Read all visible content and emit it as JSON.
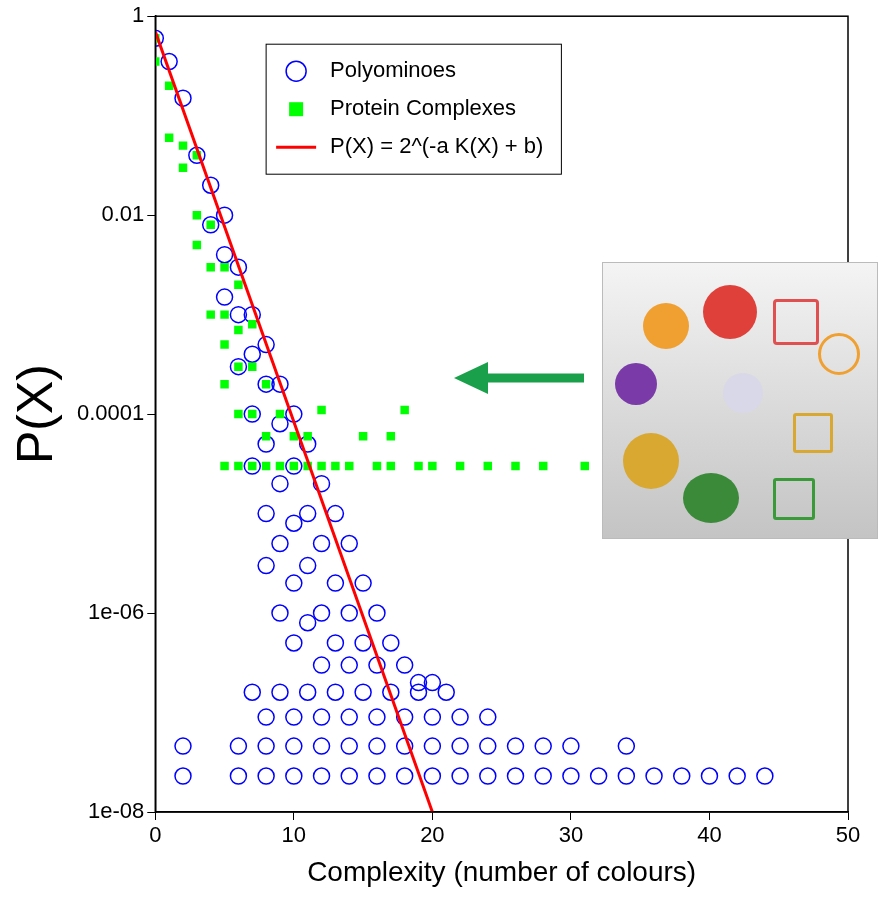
{
  "chart_data": {
    "type": "scatter",
    "x_label": "Complexity (number of colours)",
    "y_label": "P(X)",
    "xlim": [
      0,
      50
    ],
    "xticks": [
      0,
      10,
      20,
      30,
      40,
      50
    ],
    "ylim": [
      1e-08,
      1
    ],
    "yticks": [
      1,
      0.01,
      0.0001,
      {
        "value": 1e-06,
        "label": "1e-06"
      },
      {
        "value": 1e-08,
        "label": "1e-08"
      }
    ],
    "log": "y",
    "grid": false,
    "legend": "top",
    "series": [
      {
        "name": "Polyominoes",
        "type": "scatter",
        "marker": "hollow-circle",
        "color": "#0000ff",
        "x": [
          0,
          1,
          2,
          3,
          4,
          4,
          5,
          5,
          5,
          6,
          6,
          6,
          7,
          7,
          7,
          7,
          8,
          8,
          8,
          8,
          8,
          9,
          9,
          9,
          9,
          9,
          10,
          10,
          10,
          10,
          10,
          11,
          11,
          11,
          11,
          12,
          12,
          12,
          12,
          13,
          13,
          13,
          14,
          14,
          14,
          15,
          15,
          16,
          16,
          17,
          18,
          19,
          20,
          7,
          9,
          11,
          13,
          15,
          17,
          19,
          21,
          8,
          10,
          12,
          14,
          16,
          18,
          20,
          22,
          24,
          2,
          6,
          8,
          10,
          12,
          14,
          16,
          18,
          20,
          22,
          24,
          26,
          28,
          30,
          34,
          2,
          6,
          8,
          10,
          12,
          14,
          16,
          18,
          20,
          22,
          24,
          26,
          28,
          30,
          32,
          34,
          36,
          38,
          40,
          42,
          44
        ],
        "values": [
          0.6,
          0.35,
          0.15,
          0.04,
          0.02,
          0.008,
          0.01,
          0.004,
          0.0015,
          0.003,
          0.001,
          0.0003,
          0.001,
          0.0004,
          0.0001,
          3e-05,
          0.0005,
          0.0002,
          5e-05,
          1e-05,
          3e-06,
          0.0002,
          8e-05,
          2e-05,
          5e-06,
          1e-06,
          0.0001,
          3e-05,
          8e-06,
          2e-06,
          5e-07,
          5e-05,
          1e-05,
          3e-06,
          8e-07,
          2e-05,
          5e-06,
          1e-06,
          3e-07,
          1e-05,
          2e-06,
          5e-07,
          5e-06,
          1e-06,
          3e-07,
          2e-06,
          5e-07,
          1e-06,
          3e-07,
          5e-07,
          3e-07,
          2e-07,
          2e-07,
          1.6e-07,
          1.6e-07,
          1.6e-07,
          1.6e-07,
          1.6e-07,
          1.6e-07,
          1.6e-07,
          1.6e-07,
          9e-08,
          9e-08,
          9e-08,
          9e-08,
          9e-08,
          9e-08,
          9e-08,
          9e-08,
          9e-08,
          4.6e-08,
          4.6e-08,
          4.6e-08,
          4.6e-08,
          4.6e-08,
          4.6e-08,
          4.6e-08,
          4.6e-08,
          4.6e-08,
          4.6e-08,
          4.6e-08,
          4.6e-08,
          4.6e-08,
          4.6e-08,
          4.6e-08,
          2.3e-08,
          2.3e-08,
          2.3e-08,
          2.3e-08,
          2.3e-08,
          2.3e-08,
          2.3e-08,
          2.3e-08,
          2.3e-08,
          2.3e-08,
          2.3e-08,
          2.3e-08,
          2.3e-08,
          2.3e-08,
          2.3e-08,
          2.3e-08,
          2.3e-08,
          2.3e-08,
          2.3e-08,
          2.3e-08,
          2.3e-08
        ]
      },
      {
        "name": "Protein Complexes",
        "type": "scatter",
        "marker": "square",
        "color": "#00ff00",
        "x": [
          0,
          0,
          1,
          1,
          2,
          2,
          3,
          3,
          3,
          4,
          4,
          4,
          5,
          5,
          5,
          5,
          6,
          6,
          6,
          6,
          7,
          7,
          7,
          8,
          8,
          9,
          10,
          11,
          12,
          15,
          17,
          18,
          5,
          6,
          7,
          8,
          9,
          10,
          11,
          12,
          13,
          14,
          16,
          17,
          19,
          20,
          22,
          24,
          26,
          28,
          31
        ],
        "values": [
          0.6,
          0.35,
          0.2,
          0.06,
          0.05,
          0.03,
          0.04,
          0.01,
          0.005,
          0.008,
          0.003,
          0.001,
          0.003,
          0.001,
          0.0005,
          0.0002,
          0.002,
          0.0007,
          0.0003,
          0.0001,
          0.0008,
          0.0003,
          0.0001,
          0.0002,
          6e-05,
          0.0001,
          6e-05,
          6e-05,
          0.00011,
          6e-05,
          6e-05,
          0.00011,
          3e-05,
          3e-05,
          3e-05,
          3e-05,
          3e-05,
          3e-05,
          3e-05,
          3e-05,
          3e-05,
          3e-05,
          3e-05,
          3e-05,
          3e-05,
          3e-05,
          3e-05,
          3e-05,
          3e-05,
          3e-05,
          3e-05
        ]
      },
      {
        "name": "P(X) = 2^(-a K(X) + b)",
        "type": "line",
        "line_style": "solid",
        "color": "#ff0000",
        "x": [
          0,
          20
        ],
        "values": [
          0.7,
          1e-08
        ]
      }
    ]
  }
}
